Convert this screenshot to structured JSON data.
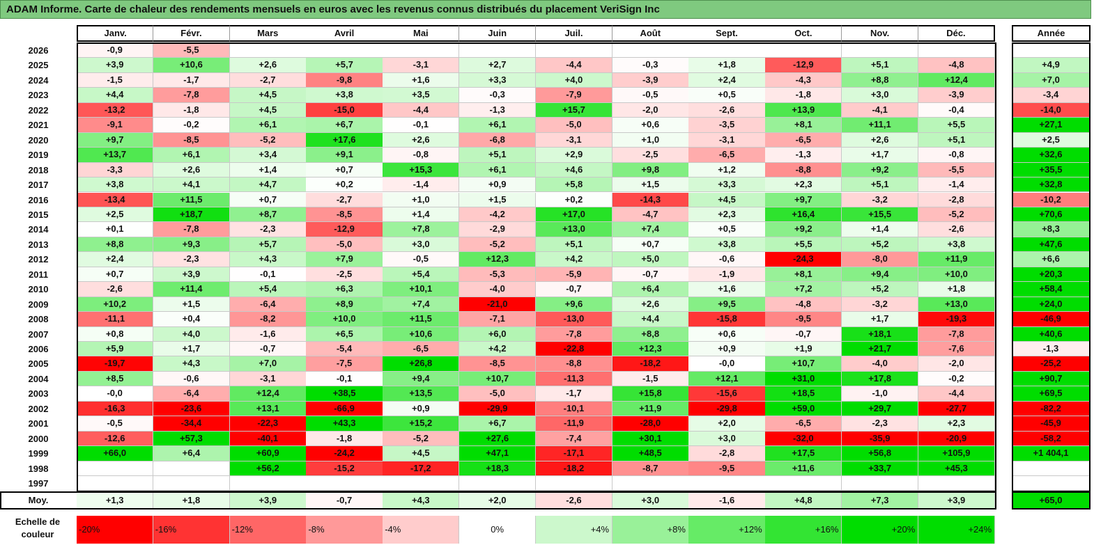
{
  "title": "ADAM Informe. Carte de chaleur des rendements mensuels en euros avec les revenus connus distribués du placement VeriSign Inc",
  "chart_data": {
    "type": "heatmap",
    "months": [
      "Janv.",
      "Févr.",
      "Mars",
      "Avril",
      "Mai",
      "Juin",
      "Juil.",
      "Août",
      "Sept.",
      "Oct.",
      "Nov.",
      "Déc."
    ],
    "year_header": "Année",
    "rows": [
      {
        "year": "2026",
        "values": [
          "-0,9",
          "-5,5",
          "",
          "",
          "",
          "",
          "",
          "",
          "",
          "",
          "",
          ""
        ],
        "annual": ""
      },
      {
        "year": "2025",
        "values": [
          "+3,9",
          "+10,6",
          "+2,6",
          "+5,7",
          "-3,1",
          "+2,7",
          "-4,4",
          "-0,3",
          "+1,8",
          "-12,9",
          "+5,1",
          "-4,8"
        ],
        "annual": "+4,9"
      },
      {
        "year": "2024",
        "values": [
          "-1,5",
          "-1,7",
          "-2,7",
          "-9,8",
          "+1,6",
          "+3,3",
          "+4,0",
          "-3,9",
          "+2,4",
          "-4,3",
          "+8,8",
          "+12,4"
        ],
        "annual": "+7,0"
      },
      {
        "year": "2023",
        "values": [
          "+4,4",
          "-7,8",
          "+4,5",
          "+3,8",
          "+3,5",
          "-0,3",
          "-7,9",
          "-0,5",
          "+0,5",
          "-1,8",
          "+3,0",
          "-3,9"
        ],
        "annual": "-3,4"
      },
      {
        "year": "2022",
        "values": [
          "-13,2",
          "-1,8",
          "+4,5",
          "-15,0",
          "-4,4",
          "-1,3",
          "+15,7",
          "-2,0",
          "-2,6",
          "+13,9",
          "-4,1",
          "-0,4"
        ],
        "annual": "-14,0"
      },
      {
        "year": "2021",
        "values": [
          "-9,1",
          "-0,2",
          "+6,1",
          "+6,7",
          "-0,1",
          "+6,1",
          "-5,0",
          "+0,6",
          "-3,5",
          "+8,1",
          "+11,1",
          "+5,5"
        ],
        "annual": "+27,1"
      },
      {
        "year": "2020",
        "values": [
          "+9,7",
          "-8,5",
          "-5,2",
          "+17,6",
          "+2,6",
          "-6,8",
          "-3,1",
          "+1,0",
          "-3,1",
          "-6,5",
          "+2,6",
          "+5,1"
        ],
        "annual": "+2,5"
      },
      {
        "year": "2019",
        "values": [
          "+13,7",
          "+6,1",
          "+3,4",
          "+9,1",
          "-0,8",
          "+5,1",
          "+2,9",
          "-2,5",
          "-6,5",
          "-1,3",
          "+1,7",
          "-0,8"
        ],
        "annual": "+32,6"
      },
      {
        "year": "2018",
        "values": [
          "-3,3",
          "+2,6",
          "+1,4",
          "+0,7",
          "+15,3",
          "+6,1",
          "+4,6",
          "+9,8",
          "+1,2",
          "-8,8",
          "+9,2",
          "-5,5"
        ],
        "annual": "+35,5"
      },
      {
        "year": "2017",
        "values": [
          "+3,8",
          "+4,1",
          "+4,7",
          "+0,2",
          "-1,4",
          "+0,9",
          "+5,8",
          "+1,5",
          "+3,3",
          "+2,3",
          "+5,1",
          "-1,4"
        ],
        "annual": "+32,8"
      },
      {
        "year": "2016",
        "values": [
          "-13,4",
          "+11,5",
          "+0,7",
          "-2,7",
          "+1,0",
          "+1,5",
          "+0,2",
          "-14,3",
          "+4,5",
          "+9,7",
          "-3,2",
          "-2,8"
        ],
        "annual": "-10,2"
      },
      {
        "year": "2015",
        "values": [
          "+2,5",
          "+18,7",
          "+8,7",
          "-8,5",
          "+1,4",
          "-4,2",
          "+17,0",
          "-4,7",
          "+2,3",
          "+16,4",
          "+15,5",
          "-5,2"
        ],
        "annual": "+70,6"
      },
      {
        "year": "2014",
        "values": [
          "+0,1",
          "-7,8",
          "-2,3",
          "-12,9",
          "+7,8",
          "-2,9",
          "+13,0",
          "+7,4",
          "+0,5",
          "+9,2",
          "+1,4",
          "-2,6"
        ],
        "annual": "+8,3"
      },
      {
        "year": "2013",
        "values": [
          "+8,8",
          "+9,3",
          "+5,7",
          "-5,0",
          "+3,0",
          "-5,2",
          "+5,1",
          "+0,7",
          "+3,8",
          "+5,5",
          "+5,2",
          "+3,8"
        ],
        "annual": "+47,6"
      },
      {
        "year": "2012",
        "values": [
          "+2,4",
          "-2,3",
          "+4,3",
          "+7,9",
          "-0,5",
          "+12,3",
          "+4,2",
          "+5,0",
          "-0,6",
          "-24,3",
          "-8,0",
          "+11,9"
        ],
        "annual": "+6,6"
      },
      {
        "year": "2011",
        "values": [
          "+0,7",
          "+3,9",
          "-0,1",
          "-2,5",
          "+5,4",
          "-5,3",
          "-5,9",
          "-0,7",
          "-1,9",
          "+8,1",
          "+9,4",
          "+10,0"
        ],
        "annual": "+20,3"
      },
      {
        "year": "2010",
        "values": [
          "-2,6",
          "+11,4",
          "+5,4",
          "+6,3",
          "+10,1",
          "-4,0",
          "-0,7",
          "+6,4",
          "+1,6",
          "+7,2",
          "+5,2",
          "+1,8"
        ],
        "annual": "+58,4"
      },
      {
        "year": "2009",
        "values": [
          "+10,2",
          "+1,5",
          "-6,4",
          "+8,9",
          "+7,4",
          "-21,0",
          "+9,6",
          "+2,6",
          "+9,5",
          "-4,8",
          "-3,2",
          "+13,0"
        ],
        "annual": "+24,0"
      },
      {
        "year": "2008",
        "values": [
          "-11,1",
          "+0,4",
          "-8,2",
          "+10,0",
          "+11,5",
          "-7,1",
          "-13,0",
          "+4,4",
          "-15,8",
          "-9,5",
          "+1,7",
          "-19,3"
        ],
        "annual": "-46,9"
      },
      {
        "year": "2007",
        "values": [
          "+0,8",
          "+4,0",
          "-1,6",
          "+6,5",
          "+10,6",
          "+6,0",
          "-7,8",
          "+8,8",
          "+0,6",
          "-0,7",
          "+18,1",
          "-7,8"
        ],
        "annual": "+40,6"
      },
      {
        "year": "2006",
        "values": [
          "+5,9",
          "+1,7",
          "-0,7",
          "-5,4",
          "-6,5",
          "+4,2",
          "-22,8",
          "+12,3",
          "+0,9",
          "+1,9",
          "+21,7",
          "-7,6"
        ],
        "annual": "-1,3"
      },
      {
        "year": "2005",
        "values": [
          "-19,7",
          "+4,3",
          "+7,0",
          "-7,5",
          "+26,8",
          "-8,5",
          "-8,8",
          "-18,2",
          "-0,0",
          "+10,7",
          "-4,0",
          "-2,0"
        ],
        "annual": "-25,2"
      },
      {
        "year": "2004",
        "values": [
          "+8,5",
          "-0,6",
          "-3,1",
          "-0,1",
          "+9,4",
          "+10,7",
          "-11,3",
          "-1,5",
          "+12,1",
          "+31,0",
          "+17,8",
          "-0,2"
        ],
        "annual": "+90,7"
      },
      {
        "year": "2003",
        "values": [
          "-0,0",
          "-6,4",
          "+12,4",
          "+38,5",
          "+13,5",
          "-5,0",
          "-1,7",
          "+15,8",
          "-15,6",
          "+18,5",
          "-1,0",
          "-4,4"
        ],
        "annual": "+69,5"
      },
      {
        "year": "2002",
        "values": [
          "-16,3",
          "-23,6",
          "+13,1",
          "-66,9",
          "+0,9",
          "-29,9",
          "-10,1",
          "+11,9",
          "-29,8",
          "+59,0",
          "+29,7",
          "-27,7"
        ],
        "annual": "-82,2"
      },
      {
        "year": "2001",
        "values": [
          "-0,5",
          "-34,4",
          "-22,3",
          "+43,3",
          "+15,2",
          "+6,7",
          "-11,9",
          "-28,0",
          "+2,0",
          "-6,5",
          "-2,3",
          "+2,3"
        ],
        "annual": "-45,9"
      },
      {
        "year": "2000",
        "values": [
          "-12,6",
          "+57,3",
          "-40,1",
          "-1,8",
          "-5,2",
          "+27,6",
          "-7,4",
          "+30,1",
          "+3,0",
          "-32,0",
          "-35,9",
          "-20,9"
        ],
        "annual": "-58,2"
      },
      {
        "year": "1999",
        "values": [
          "+66,0",
          "+6,4",
          "+60,9",
          "-24,2",
          "+4,5",
          "+47,1",
          "-17,1",
          "+48,5",
          "-2,8",
          "+17,5",
          "+56,8",
          "+105,9"
        ],
        "annual": "+1 404,1"
      },
      {
        "year": "1998",
        "values": [
          "",
          "",
          "+56,2",
          "-15,2",
          "-17,2",
          "+18,3",
          "-18,2",
          "-8,7",
          "-9,5",
          "+11,6",
          "+33,7",
          "+45,3"
        ],
        "annual": ""
      },
      {
        "year": "1997",
        "values": [
          "",
          "",
          "",
          "",
          "",
          "",
          "",
          "",
          "",
          "",
          "",
          ""
        ],
        "annual": ""
      }
    ],
    "average": {
      "label": "Moy.",
      "values": [
        "+1,3",
        "+1,8",
        "+3,9",
        "-0,7",
        "+4,3",
        "+2,0",
        "-2,6",
        "+3,0",
        "-1,6",
        "+4,8",
        "+7,3",
        "+3,9"
      ],
      "annual": "+65,0"
    },
    "scale": {
      "label": "Echelle de couleur",
      "steps": [
        "-20%",
        "-16%",
        "-12%",
        "-8%",
        "-4%",
        "0%",
        "+4%",
        "+8%",
        "+12%",
        "+16%",
        "+20%",
        "+24%"
      ]
    },
    "colors": {
      "negative": "#ff0000",
      "positive": "#00dd00",
      "neutral": "#ffffff",
      "title_bg": "#7fc97f"
    }
  }
}
